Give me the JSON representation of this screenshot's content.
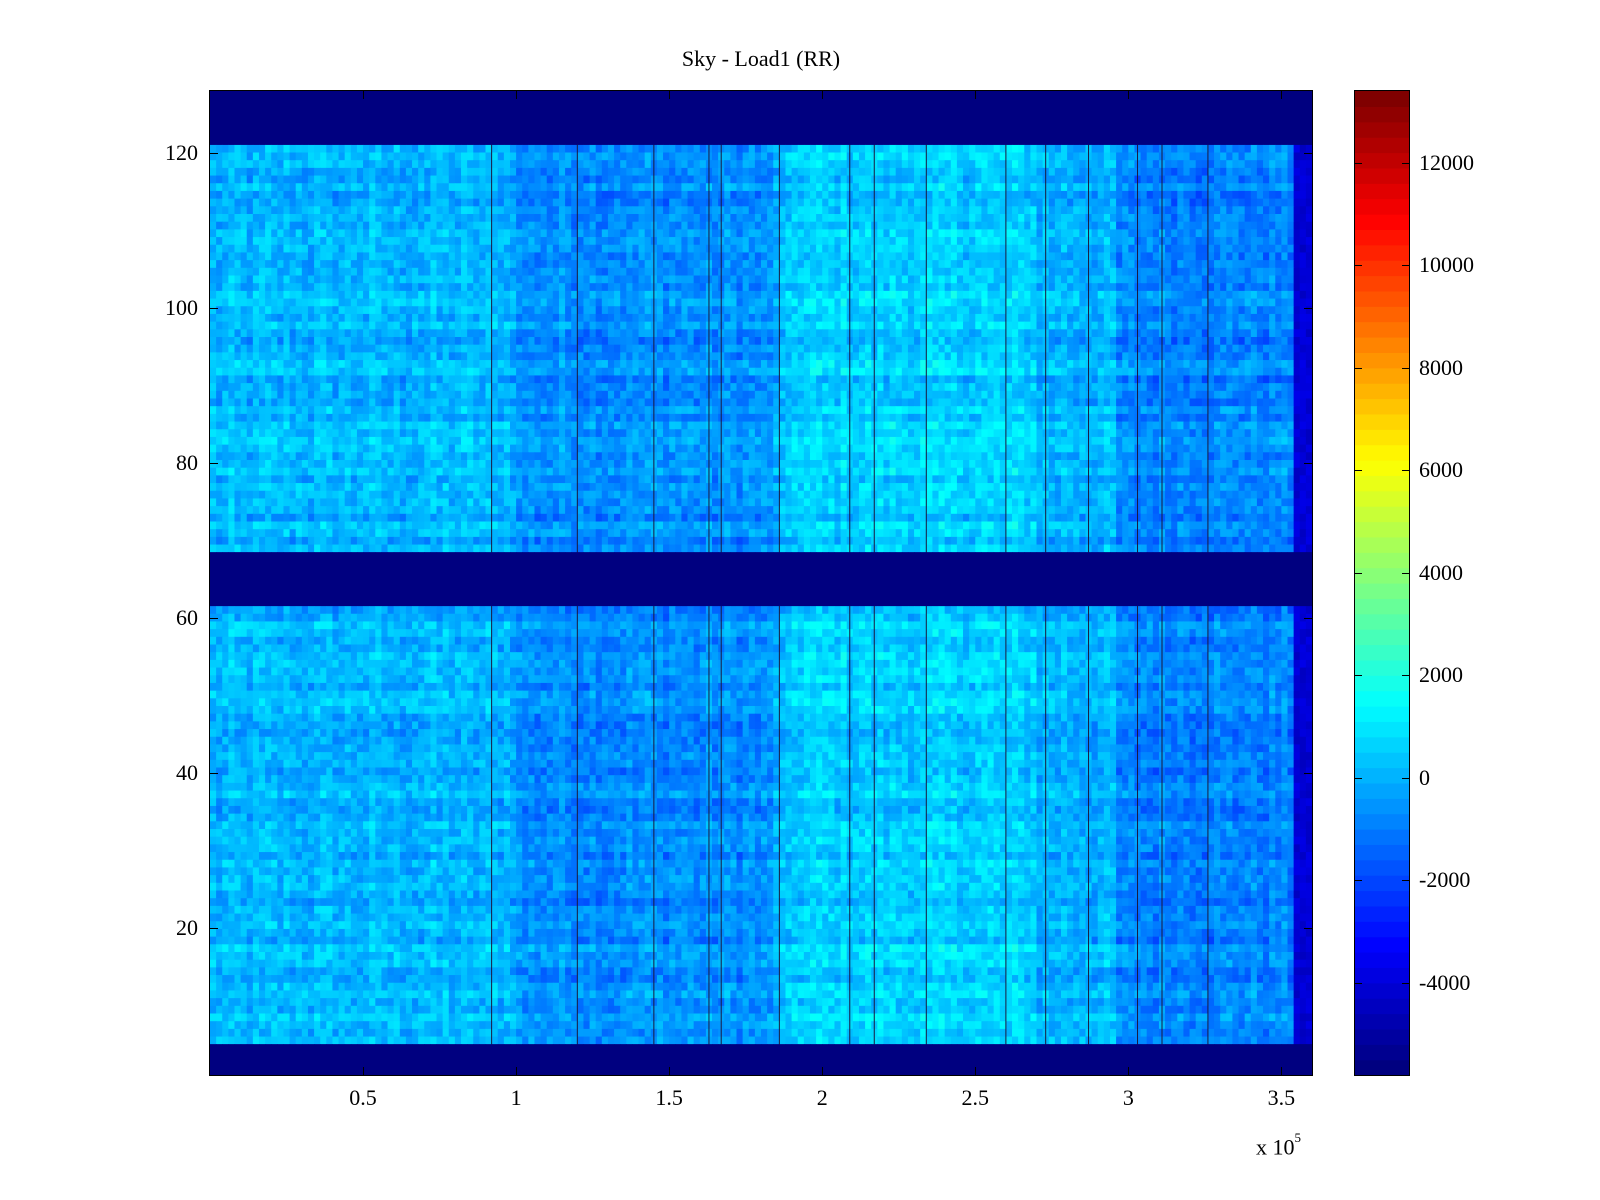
{
  "chart_data": {
    "type": "heatmap",
    "title": "Sky - Load1 (RR)",
    "xlabel": "",
    "ylabel": "",
    "x_multiplier_label": "x 10",
    "x_multiplier_exponent": "5",
    "xlim": [
      0,
      360000
    ],
    "ylim": [
      1,
      128
    ],
    "x_ticks": [
      50000,
      100000,
      150000,
      200000,
      250000,
      300000,
      350000
    ],
    "x_tick_labels": [
      "0.5",
      "1",
      "1.5",
      "2",
      "2.5",
      "3",
      "3.5"
    ],
    "y_ticks": [
      20,
      40,
      60,
      80,
      100,
      120
    ],
    "y_tick_labels": [
      "20",
      "40",
      "60",
      "80",
      "100",
      "120"
    ],
    "colorbar": {
      "colormap": "jet",
      "clim": [
        -5800,
        13400
      ],
      "ticks": [
        -4000,
        -2000,
        0,
        2000,
        4000,
        6000,
        8000,
        10000,
        12000
      ],
      "tick_labels": [
        "-4000",
        "-2000",
        "0",
        "2000",
        "4000",
        "6000",
        "8000",
        "10000",
        "12000"
      ]
    },
    "masked_row_bands": [
      [
        1,
        4
      ],
      [
        62,
        68
      ],
      [
        122,
        128
      ]
    ],
    "masked_value": -5800,
    "background_level": 0,
    "vertical_lines_x": [
      92000,
      120000,
      145000,
      163000,
      167000,
      186000,
      209000,
      217000,
      234000,
      260000,
      273000,
      287000,
      303000,
      311000,
      326000
    ]
  }
}
